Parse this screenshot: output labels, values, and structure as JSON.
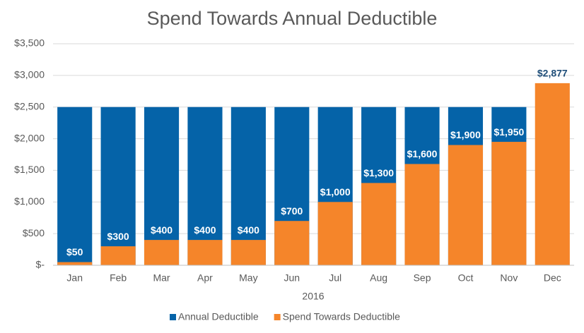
{
  "chart_data": {
    "type": "bar",
    "title": "Spend Towards Annual Deductible",
    "x_label": "2016",
    "categories": [
      "Jan",
      "Feb",
      "Mar",
      "Apr",
      "May",
      "Jun",
      "Jul",
      "Aug",
      "Sep",
      "Oct",
      "Nov",
      "Dec"
    ],
    "series": [
      {
        "name": "Annual Deductible",
        "color": "#0563a8",
        "values": [
          2500,
          2500,
          2500,
          2500,
          2500,
          2500,
          2500,
          2500,
          2500,
          2500,
          2500,
          null
        ]
      },
      {
        "name": "Spend Towards Deductible",
        "color": "#f5852a",
        "values": [
          50,
          300,
          400,
          400,
          400,
          700,
          1000,
          1300,
          1600,
          1900,
          1950,
          2877
        ],
        "value_labels": [
          "$50",
          "$300",
          "$400",
          "$400",
          "$400",
          "$700",
          "$1,000",
          "$1,300",
          "$1,600",
          "$1,900",
          "$1,950",
          "$2,877"
        ]
      }
    ],
    "overlap": true,
    "ylim": [
      0,
      3500
    ],
    "yticks": [
      {
        "value": 0,
        "label": "$-"
      },
      {
        "value": 500,
        "label": "$500"
      },
      {
        "value": 1000,
        "label": "$1,000"
      },
      {
        "value": 1500,
        "label": "$1,500"
      },
      {
        "value": 2000,
        "label": "$2,000"
      },
      {
        "value": 2500,
        "label": "$2,500"
      },
      {
        "value": 3000,
        "label": "$3,000"
      },
      {
        "value": 3500,
        "label": "$3,500"
      }
    ],
    "grid": true,
    "legend": "bottom"
  }
}
